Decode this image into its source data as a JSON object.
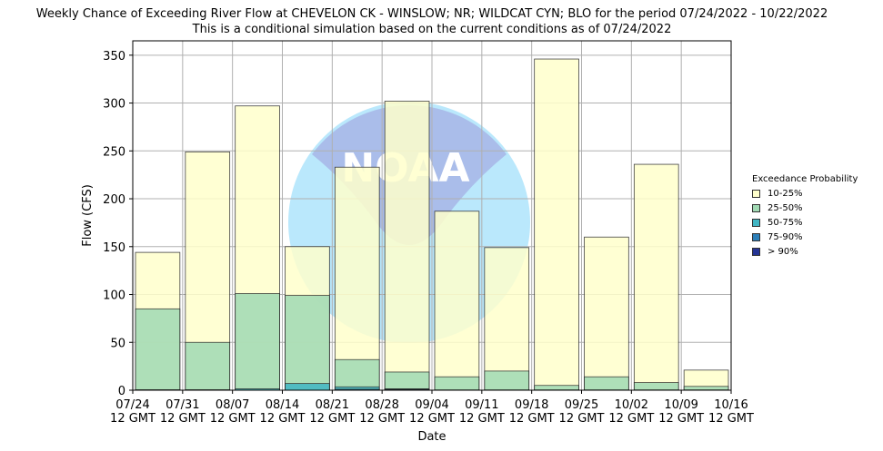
{
  "chart_data": {
    "type": "bar",
    "title": "Weekly Chance of Exceeding River Flow at CHEVELON CK - WINSLOW; NR; WILDCAT CYN; BLO for the period 07/24/2022 - 10/22/2022",
    "subtitle": "This is a conditional simulation based on the current conditions as of 07/24/2022",
    "xlabel": "Date",
    "ylabel": "Flow (CFS)",
    "ylim": [
      0,
      365
    ],
    "yticks": [
      0,
      50,
      100,
      150,
      200,
      250,
      300,
      350
    ],
    "xticks": [
      "07/24",
      "07/31",
      "08/07",
      "08/14",
      "08/21",
      "08/28",
      "09/04",
      "09/11",
      "09/18",
      "09/25",
      "10/02",
      "10/09",
      "10/16"
    ],
    "xtick_sub": "12 GMT",
    "grid": true,
    "legend_title": "Exceedance Probability",
    "legend_position": "right",
    "series": [
      {
        "name": "10-25%",
        "color": "#ffffcc",
        "values": [
          144,
          249,
          297,
          150,
          233,
          302,
          187,
          149,
          346,
          160,
          236,
          21
        ]
      },
      {
        "name": "25-50%",
        "color": "#a1dab4",
        "values": [
          85,
          50,
          101,
          99,
          32,
          19,
          14,
          20,
          5,
          14,
          8,
          4
        ]
      },
      {
        "name": "50-75%",
        "color": "#41b6c4",
        "values": [
          0.5,
          0.5,
          1.5,
          7,
          3.5,
          1.5,
          0.3,
          0.3,
          0.3,
          0.3,
          0.3,
          0.3
        ]
      },
      {
        "name": "75-90%",
        "color": "#2c7fb8",
        "values": [
          0,
          0,
          0,
          0,
          1,
          1,
          0,
          0,
          0,
          0,
          0,
          0
        ]
      },
      {
        "name": "> 90%",
        "color": "#253494",
        "values": [
          0,
          0,
          0,
          0,
          0,
          0.5,
          0,
          0,
          0,
          0,
          0,
          0
        ]
      }
    ]
  },
  "watermark": "NATIONAL OCEANIC AND ATMOSPHERIC ADMINISTRATION U.S. DEPARTMENT OF COMMERCE NOAA"
}
